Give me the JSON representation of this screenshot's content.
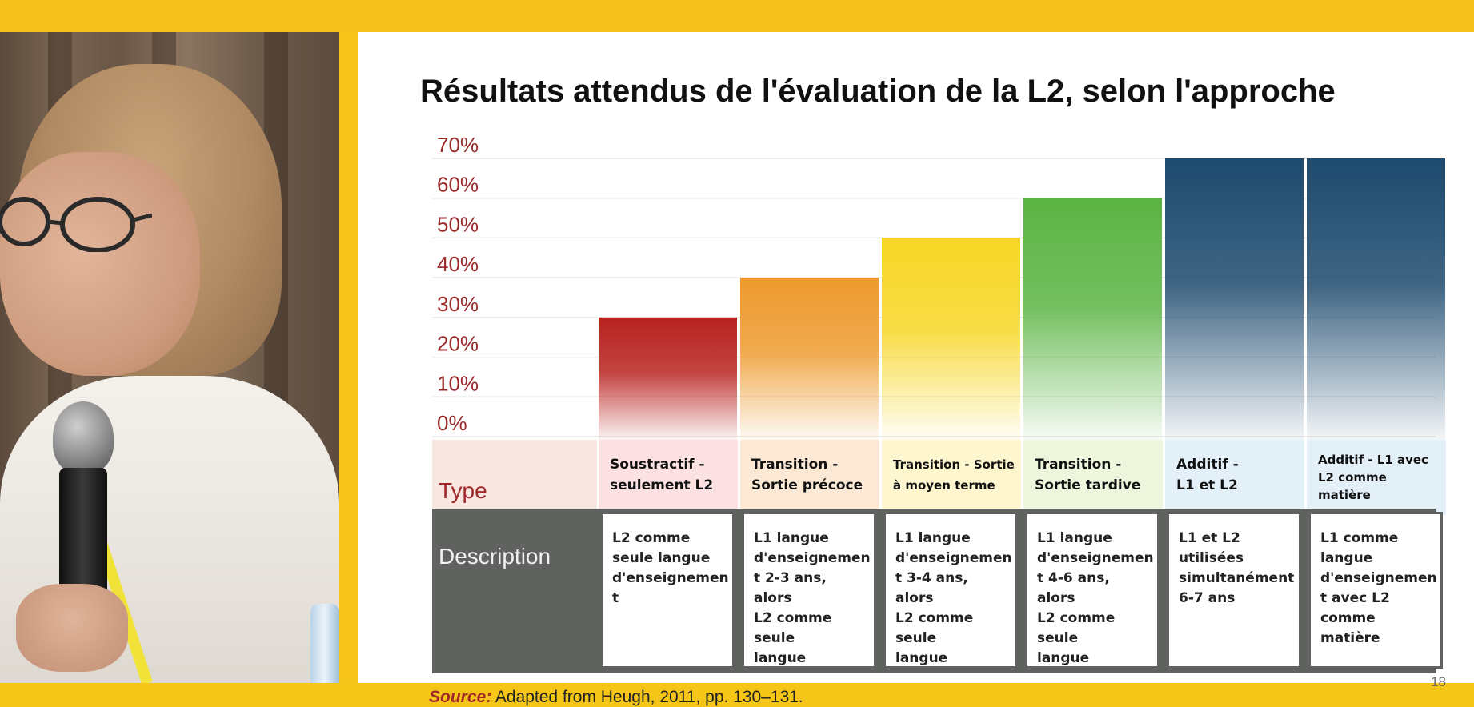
{
  "slide": {
    "title": "Résultats attendus de l'évaluation de la L2, selon l'approche",
    "row_type_label": "Type",
    "row_desc_label": "Description",
    "source_label": "Source:",
    "source_text": " Adapted from Heugh, 2011, pp. 130–131.",
    "page_number": "18"
  },
  "chart_data": {
    "type": "bar",
    "title": "Résultats attendus de l'évaluation de la L2, selon l'approche",
    "ylim": [
      0,
      70
    ],
    "yticks": [
      "0%",
      "10%",
      "20%",
      "30%",
      "40%",
      "50%",
      "60%",
      "70%"
    ],
    "grid": true,
    "categories": [
      "Soustractif - seulement L2",
      "Transition - Sortie précoce",
      "Transition - Sortie à moyen terme",
      "Transition - Sortie tardive",
      "Additif - L1 et L2",
      "Additif - L1 avec L2 comme matière"
    ],
    "values": [
      30,
      40,
      50,
      60,
      70,
      70
    ],
    "colors": [
      "#b8221f",
      "#ee9a2e",
      "#f7d624",
      "#5bb443",
      "#1d4a6e",
      "#1d4a6e"
    ],
    "type_labels": [
      [
        "Soustractif -",
        "seulement L2"
      ],
      [
        "Transition -",
        "Sortie précoce"
      ],
      [
        "Transition - Sortie",
        "à moyen terme"
      ],
      [
        "Transition -",
        "Sortie tardive"
      ],
      [
        "Additif -",
        "L1 et L2"
      ],
      [
        "Additif - L1 avec",
        "L2 comme",
        "matière"
      ]
    ],
    "type_colors": [
      "#fbe1e1",
      "#fbe9d6",
      "#fdf6cf",
      "#edf5dd",
      "#e4f0f8",
      "#e4f0f8"
    ],
    "descriptions": [
      [
        "L2 comme",
        "seule langue",
        "d'enseignemen",
        "t"
      ],
      [
        "L1 langue",
        "d'enseignemen",
        "t 2-3 ans, alors",
        "L2 comme seule",
        "langue"
      ],
      [
        "L1 langue",
        "d'enseignemen",
        "t 3-4 ans, alors",
        "L2 comme seule",
        "langue"
      ],
      [
        "L1 langue",
        "d'enseignemen",
        "t 4-6 ans, alors",
        "L2 comme seule",
        "langue"
      ],
      [
        "L1 et L2",
        "utilisées",
        "simultanément",
        "6-7 ans"
      ],
      [
        "L1 comme",
        "langue",
        "d'enseignemen",
        "t avec L2",
        "comme matière"
      ]
    ]
  }
}
